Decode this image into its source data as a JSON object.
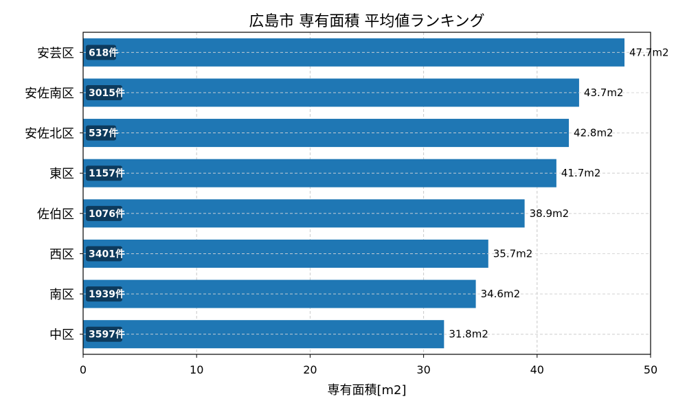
{
  "chart_data": {
    "type": "bar",
    "orientation": "horizontal",
    "title": "広島市 専有面積 平均値ランキング",
    "xlabel": "専有面積[m2]",
    "ylabel": "",
    "xlim": [
      0,
      50
    ],
    "xticks": [
      "0",
      "10",
      "20",
      "30",
      "40",
      "50"
    ],
    "grid": true,
    "bar_color": "#1f77b4",
    "count_badge_color": "#0d3a5c",
    "categories": [
      "安芸区",
      "安佐南区",
      "安佐北区",
      "東区",
      "佐伯区",
      "西区",
      "南区",
      "中区"
    ],
    "values": [
      47.7,
      43.7,
      42.8,
      41.7,
      38.9,
      35.7,
      34.6,
      31.8
    ],
    "value_labels": [
      "47.7m2",
      "43.7m2",
      "42.8m2",
      "41.7m2",
      "38.9m2",
      "35.7m2",
      "34.6m2",
      "31.8m2"
    ],
    "counts": [
      618,
      3015,
      537,
      1157,
      1076,
      3401,
      1939,
      3597
    ],
    "count_labels": [
      "618件",
      "3015件",
      "537件",
      "1157件",
      "1076件",
      "3401件",
      "1939件",
      "3597件"
    ]
  }
}
